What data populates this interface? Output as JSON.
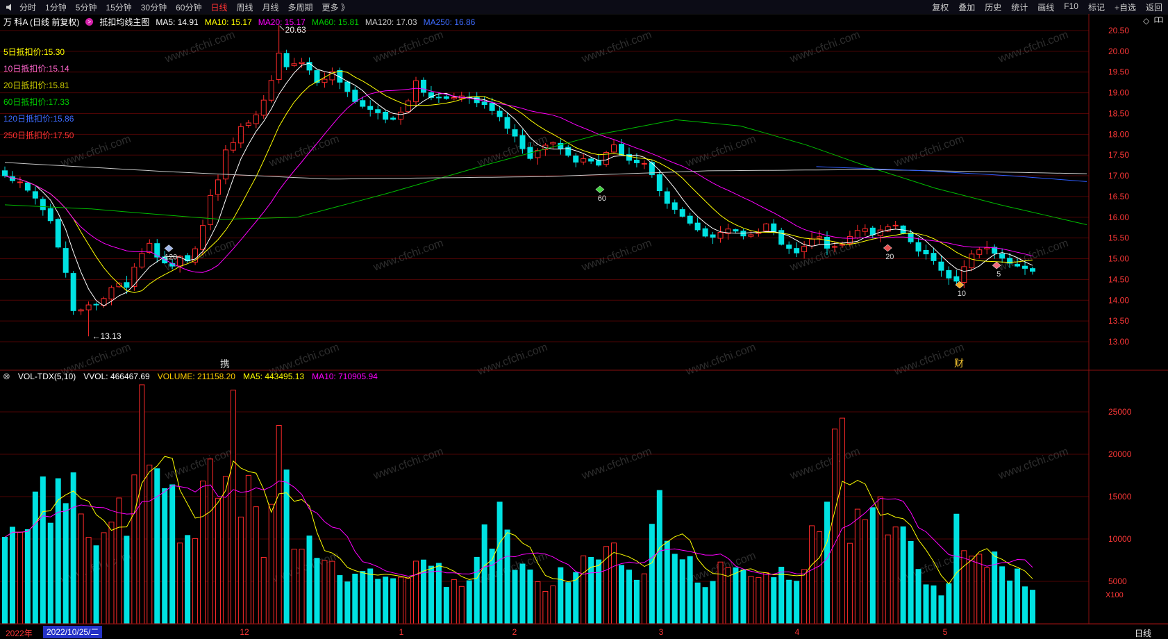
{
  "toolbar": {
    "left": [
      "分时",
      "1分钟",
      "5分钟",
      "15分钟",
      "30分钟",
      "60分钟",
      "日线",
      "周线",
      "月线",
      "多周期",
      "更多 》"
    ],
    "right": [
      "复权",
      "叠加",
      "历史",
      "统计",
      "画线",
      "F10",
      "标记",
      "+自选",
      "返回"
    ]
  },
  "header": {
    "title": "万 科A (日线 前复权)",
    "indicator": "抵扣均线主图",
    "ma_values": [
      {
        "label": "MA5: 14.91",
        "color": "#ffffff"
      },
      {
        "label": "MA10: 15.17",
        "color": "#ffff00"
      },
      {
        "label": "MA20: 15.17",
        "color": "#ff00ff"
      },
      {
        "label": "MA60: 15.81",
        "color": "#00cc00"
      },
      {
        "label": "MA120: 17.03",
        "color": "#cccccc"
      },
      {
        "label": "MA250: 16.86",
        "color": "#3d6bff"
      }
    ]
  },
  "deduction_labels": [
    {
      "label": "5日抵扣价:15.30",
      "color": "#ffff00"
    },
    {
      "label": "10日抵扣价:15.14",
      "color": "#ff66cc"
    },
    {
      "label": "20日抵扣价:15.81",
      "color": "#cccc00"
    },
    {
      "label": "60日抵扣价:17.33",
      "color": "#00cc00"
    },
    {
      "label": "120日抵扣价:15.86",
      "color": "#3d6bff"
    },
    {
      "label": "250日抵扣价:17.50",
      "color": "#ff3333"
    }
  ],
  "volume_header": {
    "name": "VOL-TDX(5,10)",
    "items": [
      {
        "label": "VVOL: 466467.69",
        "color": "#ffffff"
      },
      {
        "label": "VOLUME: 211158.20",
        "color": "#ffcc00"
      },
      {
        "label": "MA5: 443495.13",
        "color": "#ffff00"
      },
      {
        "label": "MA10: 710905.94",
        "color": "#ff00ff"
      }
    ]
  },
  "stray_text": {
    "left": "携",
    "right": "财"
  },
  "bottom_bar": {
    "year": "2022年",
    "date": "2022/10/25/二",
    "months": [
      "12",
      "1",
      "2",
      "3",
      "4",
      "5"
    ],
    "period": "日线"
  },
  "colors": {
    "up": "#ff2a2a",
    "down": "#00e2e2",
    "grid": "#4e0404",
    "separator": "#8a1111",
    "axis_text": "#ff3838",
    "ma5": "#ffffff",
    "ma10": "#ffff00",
    "ma20": "#ff00ff",
    "ma60": "#00bb00",
    "ma120": "#c8c8c8",
    "ma250": "#2d5cff",
    "vol_ma5": "#ffff00",
    "vol_ma10": "#ff00ff",
    "watermark": "rgba(140,140,140,0.32)"
  },
  "chart_data": {
    "type": "candlestick",
    "symbol": "万 科A",
    "period": "日线",
    "adjust": "前复权",
    "watermark": "www.cfchi.com",
    "high_annotation": "20.63",
    "low_annotation": "13.13",
    "price_axis": {
      "min": 13.0,
      "max": 20.5,
      "step": 0.5,
      "ticks": [
        "20.50",
        "20.00",
        "19.50",
        "19.00",
        "18.50",
        "18.00",
        "17.50",
        "17.00",
        "16.50",
        "16.00",
        "15.50",
        "15.00",
        "14.50",
        "14.00",
        "13.50",
        "13.00"
      ]
    },
    "volume_axis": {
      "ticks": [
        "25000",
        "20000",
        "15000",
        "10000",
        "5000"
      ],
      "unit": "X100"
    },
    "candles": {
      "count": 136,
      "seed": 7,
      "close_keypoints": [
        [
          0,
          17.05
        ],
        [
          0.015,
          16.8
        ],
        [
          0.03,
          16.45
        ],
        [
          0.045,
          15.9
        ],
        [
          0.06,
          14.6
        ],
        [
          0.068,
          13.55
        ],
        [
          0.078,
          13.95
        ],
        [
          0.09,
          13.85
        ],
        [
          0.1,
          14.15
        ],
        [
          0.107,
          14.5
        ],
        [
          0.118,
          14.3
        ],
        [
          0.13,
          15.05
        ],
        [
          0.14,
          15.35
        ],
        [
          0.15,
          15.0
        ],
        [
          0.16,
          14.75
        ],
        [
          0.17,
          15.1
        ],
        [
          0.18,
          14.95
        ],
        [
          0.19,
          15.55
        ],
        [
          0.2,
          16.5
        ],
        [
          0.21,
          17.1
        ],
        [
          0.218,
          17.9
        ],
        [
          0.224,
          17.75
        ],
        [
          0.232,
          18.35
        ],
        [
          0.24,
          18.2
        ],
        [
          0.25,
          18.7
        ],
        [
          0.26,
          19.3
        ],
        [
          0.268,
          20.05
        ],
        [
          0.276,
          19.55
        ],
        [
          0.285,
          19.85
        ],
        [
          0.295,
          19.6
        ],
        [
          0.305,
          19.25
        ],
        [
          0.318,
          19.5
        ],
        [
          0.33,
          19.15
        ],
        [
          0.345,
          18.65
        ],
        [
          0.36,
          18.55
        ],
        [
          0.375,
          18.3
        ],
        [
          0.39,
          18.7
        ],
        [
          0.4,
          19.25
        ],
        [
          0.41,
          18.95
        ],
        [
          0.425,
          18.85
        ],
        [
          0.44,
          18.95
        ],
        [
          0.455,
          18.8
        ],
        [
          0.47,
          18.65
        ],
        [
          0.485,
          18.3
        ],
        [
          0.498,
          17.9
        ],
        [
          0.51,
          17.35
        ],
        [
          0.522,
          17.65
        ],
        [
          0.533,
          17.8
        ],
        [
          0.545,
          17.5
        ],
        [
          0.557,
          17.3
        ],
        [
          0.568,
          17.45
        ],
        [
          0.578,
          17.25
        ],
        [
          0.59,
          17.8
        ],
        [
          0.6,
          17.5
        ],
        [
          0.612,
          17.25
        ],
        [
          0.622,
          17.3
        ],
        [
          0.632,
          16.9
        ],
        [
          0.643,
          16.35
        ],
        [
          0.655,
          16.1
        ],
        [
          0.668,
          15.85
        ],
        [
          0.68,
          15.6
        ],
        [
          0.693,
          15.55
        ],
        [
          0.705,
          15.7
        ],
        [
          0.718,
          15.6
        ],
        [
          0.73,
          15.55
        ],
        [
          0.742,
          15.85
        ],
        [
          0.752,
          15.45
        ],
        [
          0.763,
          15.2
        ],
        [
          0.773,
          15.1
        ],
        [
          0.783,
          15.45
        ],
        [
          0.793,
          15.5
        ],
        [
          0.803,
          15.2
        ],
        [
          0.813,
          15.3
        ],
        [
          0.823,
          15.55
        ],
        [
          0.833,
          15.8
        ],
        [
          0.845,
          15.6
        ],
        [
          0.856,
          15.7
        ],
        [
          0.866,
          15.8
        ],
        [
          0.876,
          15.55
        ],
        [
          0.886,
          15.2
        ],
        [
          0.896,
          15.1
        ],
        [
          0.906,
          14.85
        ],
        [
          0.916,
          14.6
        ],
        [
          0.926,
          14.45
        ],
        [
          0.936,
          14.9
        ],
        [
          0.944,
          15.2
        ],
        [
          0.953,
          15.3
        ],
        [
          0.962,
          15.15
        ],
        [
          0.971,
          15.0
        ],
        [
          0.98,
          14.9
        ],
        [
          0.99,
          14.8
        ],
        [
          1,
          14.7
        ]
      ],
      "volume_keypoints": [
        [
          0,
          9000
        ],
        [
          0.03,
          12500
        ],
        [
          0.046,
          15000
        ],
        [
          0.066,
          17500
        ],
        [
          0.08,
          10000
        ],
        [
          0.095,
          9500
        ],
        [
          0.107,
          12000
        ],
        [
          0.12,
          13500
        ],
        [
          0.131,
          27800
        ],
        [
          0.139,
          26800
        ],
        [
          0.148,
          15500
        ],
        [
          0.158,
          18500
        ],
        [
          0.17,
          10500
        ],
        [
          0.182,
          8000
        ],
        [
          0.193,
          21500
        ],
        [
          0.2,
          19800
        ],
        [
          0.208,
          13500
        ],
        [
          0.218,
          26500
        ],
        [
          0.227,
          16500
        ],
        [
          0.235,
          17000
        ],
        [
          0.243,
          14500
        ],
        [
          0.252,
          9500
        ],
        [
          0.262,
          13000
        ],
        [
          0.269,
          21800
        ],
        [
          0.278,
          12500
        ],
        [
          0.29,
          10500
        ],
        [
          0.305,
          9000
        ],
        [
          0.32,
          7500
        ],
        [
          0.335,
          6200
        ],
        [
          0.35,
          5500
        ],
        [
          0.362,
          4800
        ],
        [
          0.375,
          5200
        ],
        [
          0.388,
          6200
        ],
        [
          0.4,
          8200
        ],
        [
          0.413,
          6500
        ],
        [
          0.427,
          5500
        ],
        [
          0.44,
          6200
        ],
        [
          0.453,
          5000
        ],
        [
          0.467,
          9500
        ],
        [
          0.48,
          13200
        ],
        [
          0.493,
          6800
        ],
        [
          0.507,
          5500
        ],
        [
          0.52,
          5000
        ],
        [
          0.533,
          5200
        ],
        [
          0.547,
          6000
        ],
        [
          0.56,
          6800
        ],
        [
          0.573,
          7200
        ],
        [
          0.588,
          9500
        ],
        [
          0.6,
          6200
        ],
        [
          0.613,
          5500
        ],
        [
          0.627,
          8000
        ],
        [
          0.638,
          13800
        ],
        [
          0.647,
          9200
        ],
        [
          0.657,
          7200
        ],
        [
          0.67,
          6500
        ],
        [
          0.683,
          5600
        ],
        [
          0.697,
          6000
        ],
        [
          0.71,
          5200
        ],
        [
          0.723,
          5600
        ],
        [
          0.737,
          6200
        ],
        [
          0.75,
          7200
        ],
        [
          0.763,
          6200
        ],
        [
          0.777,
          6600
        ],
        [
          0.788,
          13000
        ],
        [
          0.798,
          12000
        ],
        [
          0.812,
          21500
        ],
        [
          0.822,
          12500
        ],
        [
          0.835,
          9800
        ],
        [
          0.848,
          13200
        ],
        [
          0.862,
          10200
        ],
        [
          0.875,
          9200
        ],
        [
          0.888,
          7200
        ],
        [
          0.902,
          4800
        ],
        [
          0.915,
          4200
        ],
        [
          0.928,
          12500
        ],
        [
          0.942,
          9200
        ],
        [
          0.955,
          7800
        ],
        [
          0.968,
          6200
        ],
        [
          0.982,
          5200
        ],
        [
          1,
          4600
        ]
      ]
    },
    "overlays": {
      "ma60_keypoints": [
        [
          0,
          16.3
        ],
        [
          0.08,
          16.2
        ],
        [
          0.15,
          16.05
        ],
        [
          0.2,
          15.95
        ],
        [
          0.27,
          16.0
        ],
        [
          0.35,
          16.55
        ],
        [
          0.45,
          17.3
        ],
        [
          0.55,
          18.0
        ],
        [
          0.62,
          18.35
        ],
        [
          0.68,
          18.2
        ],
        [
          0.74,
          17.75
        ],
        [
          0.8,
          17.2
        ],
        [
          0.86,
          16.7
        ],
        [
          0.92,
          16.3
        ],
        [
          1,
          15.82
        ]
      ],
      "ma120_keypoints": [
        [
          0,
          17.32
        ],
        [
          0.15,
          17.1
        ],
        [
          0.3,
          16.92
        ],
        [
          0.5,
          16.98
        ],
        [
          0.65,
          17.12
        ],
        [
          0.8,
          17.15
        ],
        [
          0.9,
          17.1
        ],
        [
          1,
          17.05
        ]
      ],
      "ma250_keypoints": [
        [
          0.75,
          17.22
        ],
        [
          0.85,
          17.12
        ],
        [
          0.93,
          17.0
        ],
        [
          1,
          16.86
        ]
      ]
    },
    "markers": [
      {
        "label": "120",
        "t": 0.1595,
        "price": 15.25,
        "color": "#9fb6e8"
      },
      {
        "label": "60",
        "t": 0.579,
        "price": 16.67,
        "color": "#3ed03e"
      },
      {
        "label": "20",
        "t": 0.859,
        "price": 15.26,
        "color": "#e85050"
      },
      {
        "label": "10",
        "t": 0.929,
        "price": 14.37,
        "color": "#f5a623"
      },
      {
        "label": "5",
        "t": 0.965,
        "price": 14.84,
        "color": "#f06a7a"
      }
    ]
  }
}
